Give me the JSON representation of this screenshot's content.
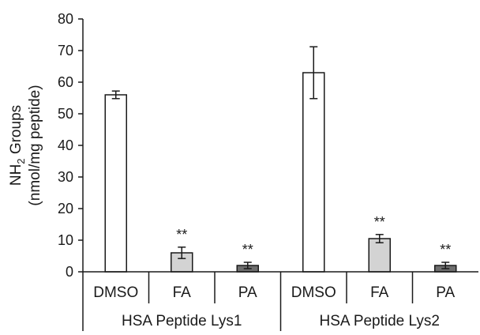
{
  "chart_data": {
    "type": "bar",
    "ylabel_line1": "NH",
    "ylabel_sub": "2",
    "ylabel_line1_rest": " Groups",
    "ylabel_line2": "(nmol/mg peptide)",
    "ylim": [
      0,
      80
    ],
    "yticks": [
      0,
      10,
      20,
      30,
      40,
      50,
      60,
      70,
      80
    ],
    "grid": false,
    "groups": [
      {
        "label": "HSA Peptide Lys1",
        "bars": [
          {
            "category": "DMSO",
            "value": 56,
            "error": 1.2,
            "annotation": "",
            "fill": "#ffffff"
          },
          {
            "category": "FA",
            "value": 6,
            "error": 1.8,
            "annotation": "**",
            "fill": "#d3d3d3"
          },
          {
            "category": "PA",
            "value": 2,
            "error": 1.0,
            "annotation": "**",
            "fill": "#6e6e6e"
          }
        ]
      },
      {
        "label": "HSA Peptide Lys2",
        "bars": [
          {
            "category": "DMSO",
            "value": 63,
            "error": 8.2,
            "annotation": "",
            "fill": "#ffffff"
          },
          {
            "category": "FA",
            "value": 10.5,
            "error": 1.3,
            "annotation": "**",
            "fill": "#d3d3d3"
          },
          {
            "category": "PA",
            "value": 2,
            "error": 1.0,
            "annotation": "**",
            "fill": "#6e6e6e"
          }
        ]
      }
    ],
    "colors": {
      "axis": "#1a1a1a",
      "bar_stroke": "#1a1a1a"
    }
  }
}
